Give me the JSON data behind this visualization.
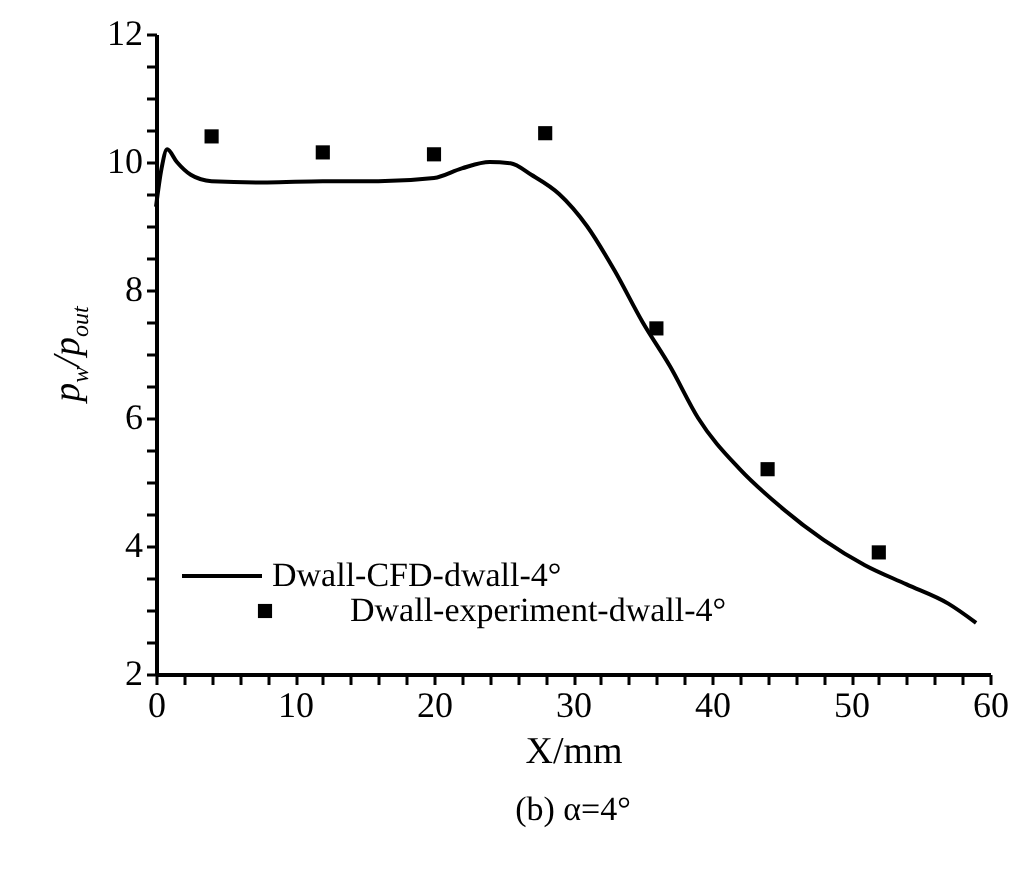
{
  "chart_data": {
    "type": "line",
    "title": "(b) α=4°",
    "xlabel": "X/mm",
    "ylabel": "p$_{w}$/p$_{out}$",
    "xlim": [
      0,
      60
    ],
    "ylim": [
      2,
      12
    ],
    "xticks": [
      0,
      {
        "value": 2,
        "label": null
      },
      {
        "value": 4,
        "label": null
      },
      {
        "value": 6,
        "label": null
      },
      {
        "value": 8,
        "label": null
      },
      10,
      {
        "value": 12,
        "label": null
      },
      {
        "value": 14,
        "label": null
      },
      {
        "value": 16,
        "label": null
      },
      {
        "value": 18,
        "label": null
      },
      20,
      {
        "value": 22,
        "label": null
      },
      {
        "value": 24,
        "label": null
      },
      {
        "value": 26,
        "label": null
      },
      {
        "value": 28,
        "label": null
      },
      30,
      {
        "value": 32,
        "label": null
      },
      {
        "value": 34,
        "label": null
      },
      {
        "value": 36,
        "label": null
      },
      {
        "value": 38,
        "label": null
      },
      40,
      {
        "value": 42,
        "label": null
      },
      {
        "value": 44,
        "label": null
      },
      {
        "value": 46,
        "label": null
      },
      {
        "value": 48,
        "label": null
      },
      50,
      {
        "value": 52,
        "label": null
      },
      {
        "value": 54,
        "label": null
      },
      {
        "value": 56,
        "label": null
      },
      {
        "value": 58,
        "label": null
      },
      60
    ],
    "yticks": [
      2,
      {
        "value": 2.5,
        "label": null
      },
      {
        "value": 3,
        "label": null
      },
      {
        "value": 3.5,
        "label": null
      },
      4,
      {
        "value": 4.5,
        "label": null
      },
      {
        "value": 5,
        "label": null
      },
      {
        "value": 5.5,
        "label": null
      },
      6,
      {
        "value": 6.5,
        "label": null
      },
      {
        "value": 7,
        "label": null
      },
      {
        "value": 7.5,
        "label": null
      },
      8,
      {
        "value": 8.5,
        "label": null
      },
      {
        "value": 9,
        "label": null
      },
      {
        "value": 9.5,
        "label": null
      },
      10,
      {
        "value": 10.5,
        "label": null
      },
      {
        "value": 11,
        "label": null
      },
      {
        "value": 11.5,
        "label": null
      },
      12
    ],
    "legend": "bottom left",
    "series": [
      {
        "name": "Dwall-CFD-dwall-4°",
        "type": "line",
        "color": "#000000",
        "line_style": "solid",
        "x": [
          0,
          0.4,
          0.8,
          1.5,
          2.5,
          4,
          8,
          12,
          16,
          20,
          22,
          24,
          25.5,
          27,
          29,
          31,
          33,
          35,
          37,
          39,
          42,
          45,
          48,
          51,
          54,
          57,
          59
        ],
        "values": [
          9.3,
          9.9,
          10.2,
          10.0,
          9.8,
          9.7,
          9.68,
          9.7,
          9.7,
          9.75,
          9.9,
          10.0,
          9.98,
          9.8,
          9.5,
          9.0,
          8.3,
          7.5,
          6.8,
          6.0,
          5.2,
          4.6,
          4.1,
          3.7,
          3.4,
          3.1,
          2.8
        ]
      },
      {
        "name": "Dwall-experiment-dwall-4°",
        "type": "scatter",
        "color": "#000000",
        "marker": "square",
        "x": [
          4,
          12,
          20,
          28,
          36,
          44,
          52
        ],
        "values": [
          10.4,
          10.15,
          10.12,
          10.45,
          7.4,
          5.2,
          3.9
        ]
      }
    ]
  }
}
